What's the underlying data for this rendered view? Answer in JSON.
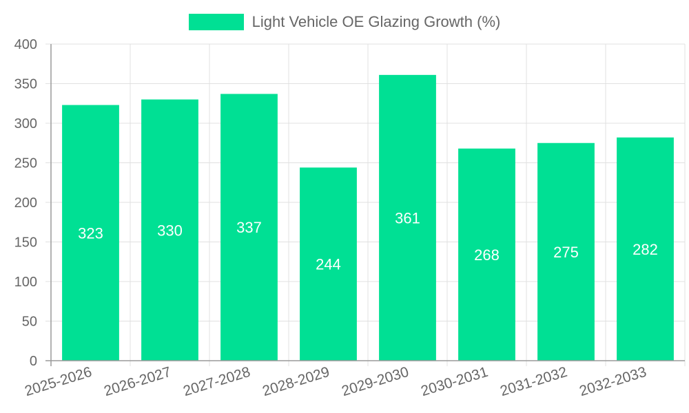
{
  "chart_data": {
    "type": "bar",
    "categories": [
      "2025-2026",
      "2026-2027",
      "2027-2028",
      "2028-2029",
      "2029-2030",
      "2030-2031",
      "2031-2032",
      "2032-2033"
    ],
    "series": [
      {
        "name": "Light Vehicle OE Glazing Growth (%)",
        "values": [
          323,
          330,
          337,
          244,
          361,
          268,
          275,
          282
        ]
      }
    ],
    "ylim": [
      0,
      400
    ],
    "yticks": [
      0,
      50,
      100,
      150,
      200,
      250,
      300,
      350,
      400
    ],
    "grid": true,
    "legend_position": "top-center",
    "data_labels": true,
    "colors": {
      "bar": "#00e094",
      "grid": "#e0e0e0",
      "axis": "#999999",
      "tick_text": "#666666",
      "label_text": "#ffffff"
    }
  }
}
